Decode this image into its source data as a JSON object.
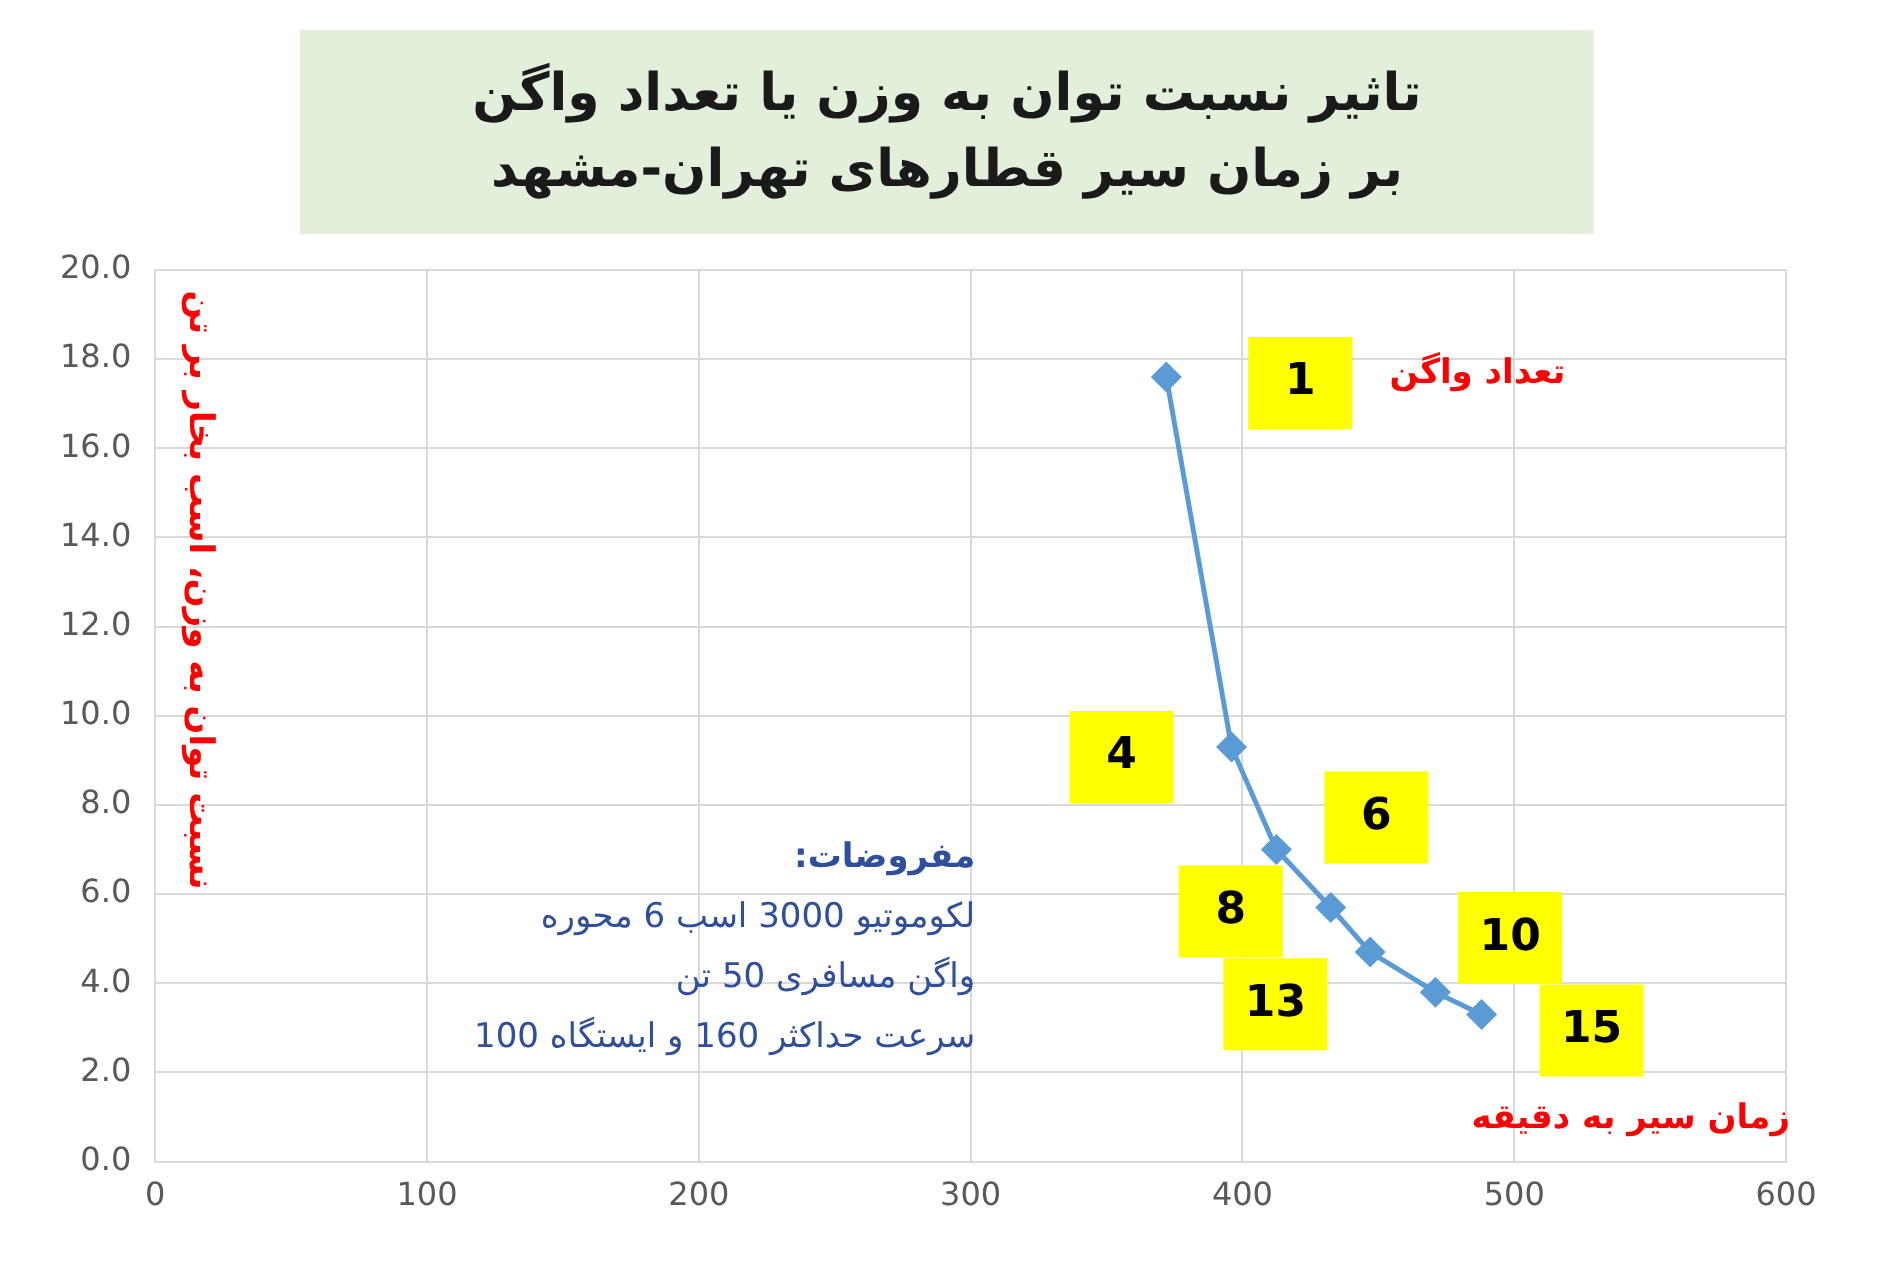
{
  "chart_data": {
    "type": "line",
    "title": "تاثیر نسبت توان به وزن یا تعداد واگن بر زمان سیر قطارهای تهران-مشهد",
    "xlabel": "زمان سیر به دقیقه",
    "ylabel": "نسبت توان به وزن، اسب بخار بر تن",
    "x": [
      372,
      396,
      412.5,
      432.5,
      447,
      471,
      488
    ],
    "series": [
      {
        "color": "#5b9bd5",
        "values": [
          17.6,
          9.3,
          7.0,
          5.7,
          4.7,
          3.8,
          3.3
        ]
      }
    ],
    "xlim": [
      0,
      600
    ],
    "xticks": [
      0,
      100,
      200,
      300,
      400,
      500,
      600
    ],
    "ylim": [
      0,
      20
    ],
    "yticks": [
      {
        "value": 0,
        "label": "0.0"
      },
      {
        "value": 2,
        "label": "2.0"
      },
      {
        "value": 4,
        "label": "4.0"
      },
      {
        "value": 6,
        "label": "6.0"
      },
      {
        "value": 8,
        "label": "8.0"
      },
      {
        "value": 10,
        "label": "10.0"
      },
      {
        "value": 12,
        "label": "12.0"
      },
      {
        "value": 14,
        "label": "14.0"
      },
      {
        "value": 16,
        "label": "16.0"
      },
      {
        "value": 18,
        "label": "18.0"
      },
      {
        "value": 20,
        "label": "20.0"
      }
    ],
    "grid": true,
    "marker": "diamond",
    "line_style": "solid",
    "legend": false,
    "annotations": [
      {
        "text": "1",
        "x": 372,
        "y": 17.6
      },
      {
        "text": "4",
        "x": 396,
        "y": 9.3
      },
      {
        "text": "6",
        "x": 412.5,
        "y": 7.0
      },
      {
        "text": "8",
        "x": 432.5,
        "y": 5.7
      },
      {
        "text": "10",
        "x": 447,
        "y": 4.7
      },
      {
        "text": "13",
        "x": 471,
        "y": 3.8
      },
      {
        "text": "15",
        "x": 488,
        "y": 3.3
      },
      "تعداد واگن",
      "مفروضات:",
      "لکوموتیو 3000 اسب 6 محوره",
      "واگن مسافری 50 تن",
      "سرعت حداکثر 160 و ایستگاه 100"
    ]
  }
}
